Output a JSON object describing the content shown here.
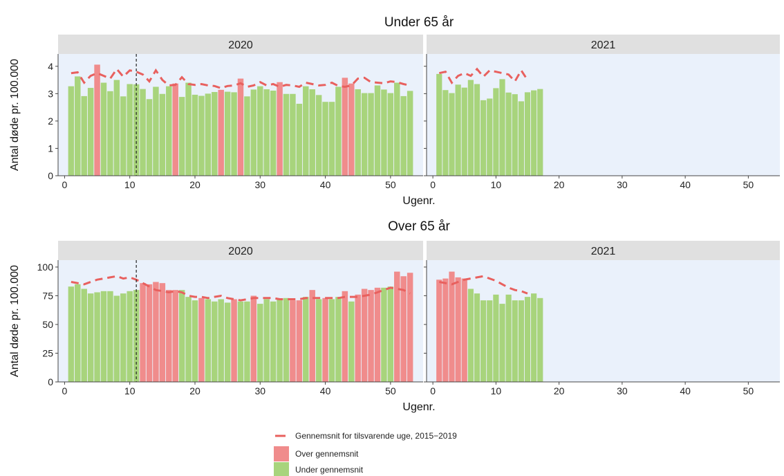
{
  "chart_data": {
    "type": "bar",
    "x_label": "Ugenr.",
    "y_label": "Antal døde pr. 100.000",
    "x_ticks": [
      0,
      10,
      20,
      30,
      40,
      50
    ],
    "x_range": [
      -1,
      55
    ],
    "reference_week": 11,
    "colors": {
      "over": "#f08c8c",
      "under": "#a8d47c",
      "average_line": "#e8605e",
      "panel_background": "#eaf1fb",
      "strip_background": "#e0e0e0"
    },
    "legend": {
      "placement": "bottom",
      "line_label": "Gennemsnit for tilsvarende uge, 2015−2019",
      "over_label": "Over gennemsnit",
      "under_label": "Under gennemsnit"
    },
    "groups": [
      {
        "title": "Under 65 år",
        "y_range": [
          0,
          4.45
        ],
        "y_ticks": [
          0,
          1,
          2,
          3,
          4
        ],
        "panels": [
          {
            "strip": "2020",
            "weeks": [
              1,
              2,
              3,
              4,
              5,
              6,
              7,
              8,
              9,
              10,
              11,
              12,
              13,
              14,
              15,
              16,
              17,
              18,
              19,
              20,
              21,
              22,
              23,
              24,
              25,
              26,
              27,
              28,
              29,
              30,
              31,
              32,
              33,
              34,
              35,
              36,
              37,
              38,
              39,
              40,
              41,
              42,
              43,
              44,
              45,
              46,
              47,
              48,
              49,
              50,
              51,
              52,
              53
            ],
            "values": [
              3.27,
              3.63,
              2.91,
              3.21,
              4.06,
              3.4,
              3.09,
              3.5,
              2.9,
              3.35,
              3.34,
              3.17,
              2.8,
              3.25,
              2.99,
              3.27,
              3.37,
              2.88,
              3.4,
              2.96,
              2.92,
              3.0,
              3.06,
              3.14,
              3.07,
              3.05,
              3.55,
              2.9,
              3.15,
              3.27,
              3.16,
              3.11,
              3.42,
              2.99,
              2.99,
              2.63,
              3.27,
              3.16,
              2.95,
              2.7,
              2.7,
              3.25,
              3.58,
              3.37,
              3.16,
              3.02,
              3.02,
              3.3,
              3.15,
              3.02,
              3.4,
              2.91,
              3.1
            ],
            "status": [
              "U",
              "U",
              "U",
              "U",
              "O",
              "U",
              "U",
              "U",
              "U",
              "U",
              "U",
              "U",
              "U",
              "U",
              "U",
              "U",
              "O",
              "U",
              "U",
              "U",
              "U",
              "U",
              "U",
              "O",
              "U",
              "U",
              "O",
              "U",
              "U",
              "U",
              "U",
              "U",
              "O",
              "U",
              "U",
              "U",
              "U",
              "U",
              "U",
              "U",
              "U",
              "U",
              "O",
              "O",
              "U",
              "U",
              "U",
              "U",
              "U",
              "U",
              "U",
              "U",
              "U"
            ],
            "average": [
              3.75,
              3.78,
              3.4,
              3.65,
              3.75,
              3.65,
              3.55,
              3.9,
              3.62,
              3.85,
              3.8,
              3.7,
              3.45,
              3.85,
              3.5,
              3.3,
              3.32,
              3.6,
              3.35,
              3.32,
              3.35,
              3.3,
              3.28,
              3.2,
              3.28,
              3.3,
              3.38,
              3.25,
              3.3,
              3.42,
              3.3,
              3.35,
              3.25,
              3.32,
              3.3,
              3.25,
              3.4,
              3.35,
              3.3,
              3.32,
              3.4,
              3.28,
              3.25,
              3.3,
              3.55,
              3.58,
              3.42,
              3.4,
              3.38,
              3.45,
              3.42,
              3.35,
              3.3
            ]
          },
          {
            "strip": "2021",
            "weeks": [
              1,
              2,
              3,
              4,
              5,
              6,
              7,
              8,
              9,
              10,
              11,
              12,
              13,
              14,
              15,
              16,
              17
            ],
            "values": [
              3.72,
              3.13,
              3.02,
              3.33,
              3.22,
              3.5,
              3.35,
              2.76,
              2.82,
              3.2,
              3.53,
              3.04,
              2.98,
              2.72,
              3.05,
              3.12,
              3.17
            ],
            "status": [
              "U",
              "U",
              "U",
              "U",
              "U",
              "U",
              "U",
              "U",
              "U",
              "U",
              "U",
              "U",
              "U",
              "U",
              "U",
              "U",
              "U"
            ],
            "average": [
              3.75,
              3.8,
              3.4,
              3.65,
              3.75,
              3.65,
              3.9,
              3.62,
              3.85,
              3.8,
              3.75,
              3.7,
              3.45,
              3.85,
              3.5,
              null,
              null
            ]
          }
        ]
      },
      {
        "title": "Over 65 år",
        "y_range": [
          0,
          106
        ],
        "y_ticks": [
          0,
          25,
          50,
          75,
          100
        ],
        "panels": [
          {
            "strip": "2020",
            "weeks": [
              1,
              2,
              3,
              4,
              5,
              6,
              7,
              8,
              9,
              10,
              11,
              12,
              13,
              14,
              15,
              16,
              17,
              18,
              19,
              20,
              21,
              22,
              23,
              24,
              25,
              26,
              27,
              28,
              29,
              30,
              31,
              32,
              33,
              34,
              35,
              36,
              37,
              38,
              39,
              40,
              41,
              42,
              43,
              44,
              45,
              46,
              47,
              48,
              49,
              50,
              51,
              52,
              53
            ],
            "values": [
              83,
              85,
              81,
              77,
              78,
              79,
              79,
              75,
              77,
              79,
              80,
              86,
              85,
              87,
              86,
              80,
              80,
              80,
              74,
              71,
              73,
              72,
              70,
              72,
              69,
              72,
              70,
              70,
              75,
              68,
              72,
              70,
              72,
              73,
              71,
              71,
              74,
              80,
              72,
              73,
              72,
              74,
              79,
              70,
              76,
              81,
              80,
              82,
              82,
              83,
              96,
              92,
              95
            ],
            "status": [
              "U",
              "U",
              "U",
              "U",
              "U",
              "U",
              "U",
              "U",
              "U",
              "U",
              "U",
              "O",
              "O",
              "O",
              "O",
              "O",
              "O",
              "U",
              "U",
              "U",
              "O",
              "U",
              "U",
              "U",
              "U",
              "O",
              "U",
              "U",
              "O",
              "U",
              "U",
              "U",
              "U",
              "U",
              "O",
              "O",
              "U",
              "O",
              "U",
              "O",
              "U",
              "U",
              "O",
              "U",
              "O",
              "O",
              "O",
              "O",
              "U",
              "U",
              "O",
              "O",
              "O"
            ],
            "average": [
              87,
              86,
              85,
              87,
              89,
              90,
              91,
              92,
              90,
              91,
              89,
              86,
              83,
              80,
              79,
              78,
              79,
              78,
              75,
              74,
              74,
              73,
              74,
              75,
              73,
              72,
              71,
              72,
              73,
              73,
              73,
              73,
              72,
              72,
              72,
              72,
              73,
              73,
              73,
              73,
              73,
              73,
              74,
              74,
              74,
              75,
              76,
              78,
              80,
              82,
              81,
              80,
              77
            ]
          },
          {
            "strip": "2021",
            "weeks": [
              1,
              2,
              3,
              4,
              5,
              6,
              7,
              8,
              9,
              10,
              11,
              12,
              13,
              14,
              15,
              16,
              17
            ],
            "values": [
              89,
              90,
              96,
              91,
              90,
              81,
              77,
              71,
              71,
              76,
              68,
              76,
              71,
              71,
              74,
              77,
              73
            ],
            "status": [
              "O",
              "O",
              "O",
              "O",
              "O",
              "U",
              "U",
              "U",
              "U",
              "U",
              "U",
              "U",
              "U",
              "U",
              "U",
              "U",
              "U"
            ],
            "average": [
              87,
              86,
              85,
              87,
              89,
              90,
              91,
              92,
              90,
              88,
              85,
              82,
              80,
              79,
              77,
              null,
              null
            ]
          }
        ]
      }
    ]
  }
}
